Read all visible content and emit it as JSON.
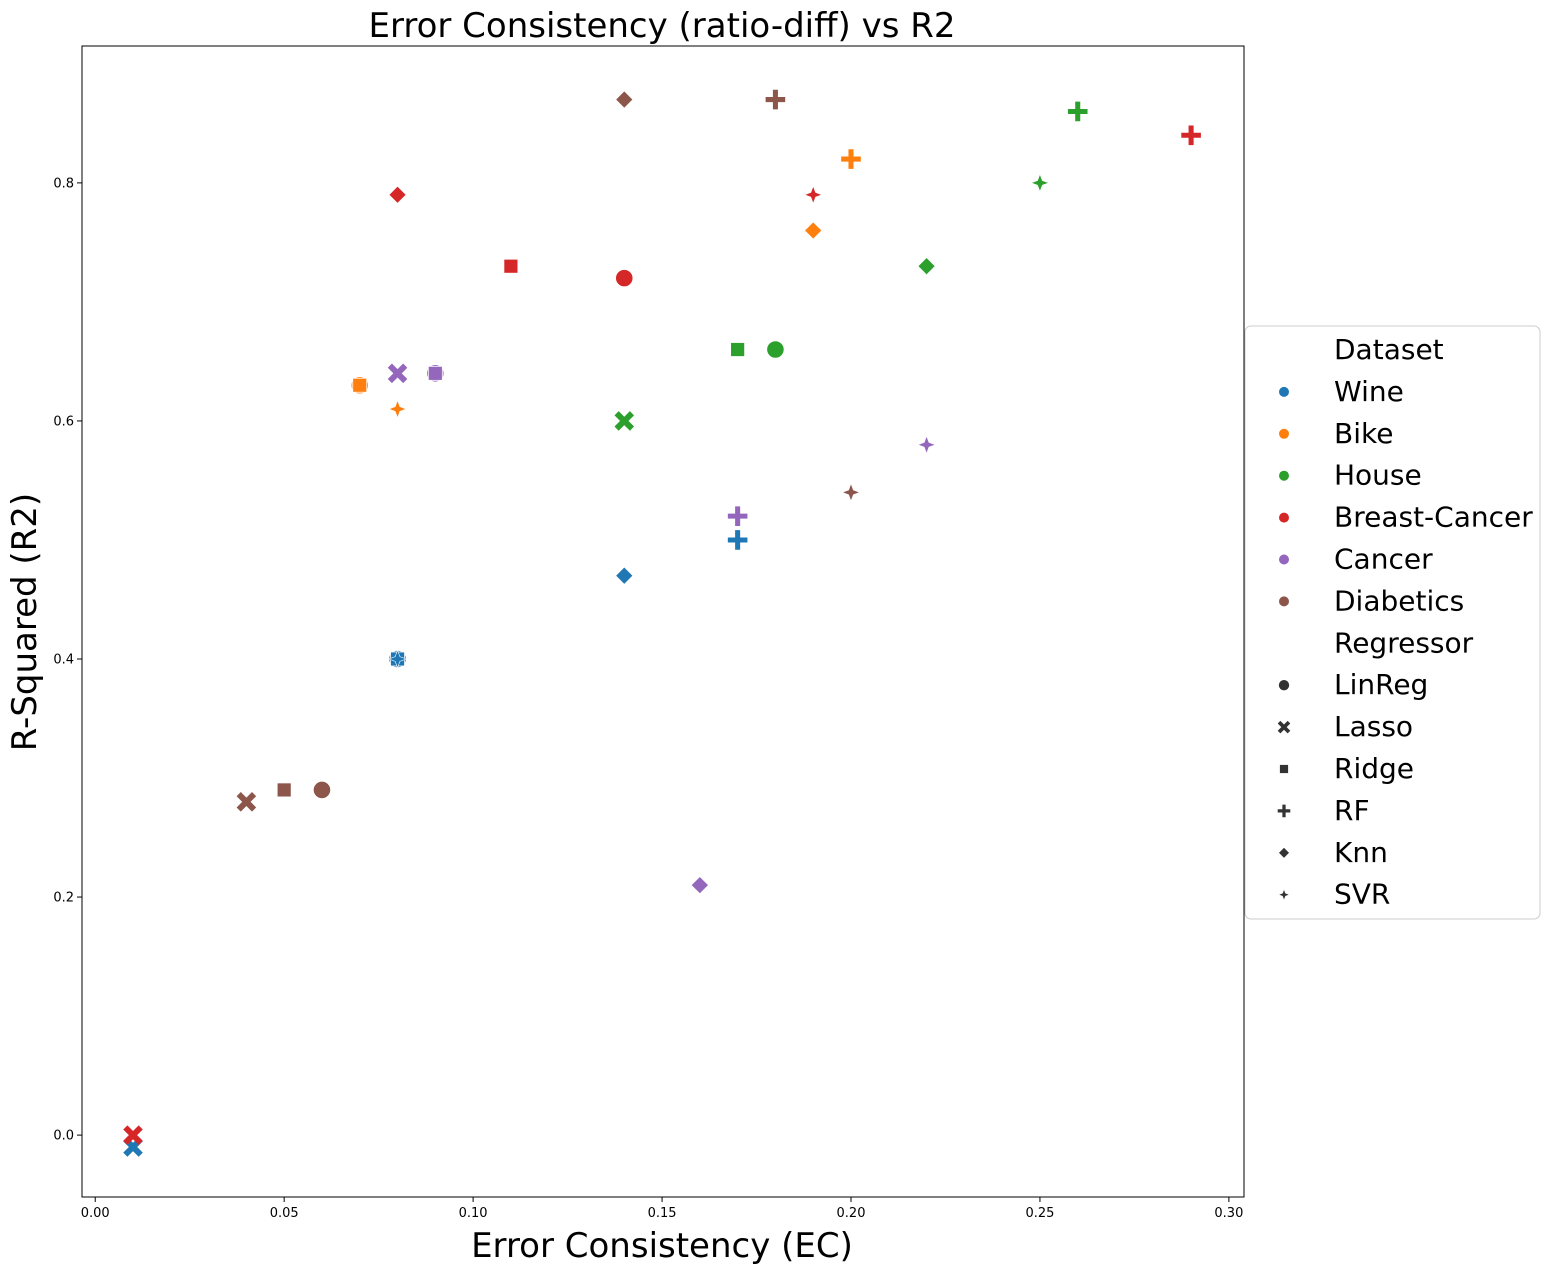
{
  "chart_data": {
    "type": "scatter",
    "title": "Error Consistency (ratio-diff) vs R2",
    "xlabel": "Error Consistency (EC)",
    "ylabel": "R-Squared (R2)",
    "xlim": [
      -0.0035,
      0.304
    ],
    "ylim": [
      -0.052,
      0.915
    ],
    "xticks": [
      0.0,
      0.05,
      0.1,
      0.15,
      0.2,
      0.25,
      0.3
    ],
    "xtick_labels": [
      "0.00",
      "0.05",
      "0.10",
      "0.15",
      "0.20",
      "0.25",
      "0.30"
    ],
    "yticks": [
      0.0,
      0.2,
      0.4,
      0.6,
      0.8
    ],
    "ytick_labels": [
      "0.0",
      "0.2",
      "0.4",
      "0.6",
      "0.8"
    ],
    "grid": false,
    "legend_position": "right",
    "hue": {
      "title": "Dataset",
      "entries": [
        {
          "name": "Wine",
          "color": "#1f77b4"
        },
        {
          "name": "Bike",
          "color": "#ff7f0e"
        },
        {
          "name": "House",
          "color": "#2ca02c"
        },
        {
          "name": "Breast-Cancer",
          "color": "#d62728"
        },
        {
          "name": "Cancer",
          "color": "#9467bd"
        },
        {
          "name": "Diabetics",
          "color": "#8c564b"
        }
      ]
    },
    "style": {
      "title": "Regressor",
      "entries": [
        {
          "name": "LinReg",
          "marker": "circle"
        },
        {
          "name": "Lasso",
          "marker": "x"
        },
        {
          "name": "Ridge",
          "marker": "square"
        },
        {
          "name": "RF",
          "marker": "plus"
        },
        {
          "name": "Knn",
          "marker": "diamond"
        },
        {
          "name": "SVR",
          "marker": "star4"
        }
      ]
    },
    "points": [
      {
        "dataset": "Wine",
        "regressor": "LinReg",
        "x": 0.08,
        "y": 0.4
      },
      {
        "dataset": "Wine",
        "regressor": "Lasso",
        "x": 0.01,
        "y": -0.01
      },
      {
        "dataset": "Wine",
        "regressor": "Ridge",
        "x": 0.08,
        "y": 0.4
      },
      {
        "dataset": "Wine",
        "regressor": "RF",
        "x": 0.17,
        "y": 0.5
      },
      {
        "dataset": "Wine",
        "regressor": "Knn",
        "x": 0.14,
        "y": 0.47
      },
      {
        "dataset": "Wine",
        "regressor": "SVR",
        "x": 0.08,
        "y": 0.4
      },
      {
        "dataset": "Bike",
        "regressor": "LinReg",
        "x": 0.07,
        "y": 0.63
      },
      {
        "dataset": "Bike",
        "regressor": "Ridge",
        "x": 0.07,
        "y": 0.63
      },
      {
        "dataset": "Bike",
        "regressor": "RF",
        "x": 0.2,
        "y": 0.82
      },
      {
        "dataset": "Bike",
        "regressor": "Knn",
        "x": 0.19,
        "y": 0.76
      },
      {
        "dataset": "Bike",
        "regressor": "SVR",
        "x": 0.08,
        "y": 0.61
      },
      {
        "dataset": "House",
        "regressor": "LinReg",
        "x": 0.18,
        "y": 0.66
      },
      {
        "dataset": "House",
        "regressor": "Lasso",
        "x": 0.14,
        "y": 0.6
      },
      {
        "dataset": "House",
        "regressor": "Ridge",
        "x": 0.17,
        "y": 0.66
      },
      {
        "dataset": "House",
        "regressor": "RF",
        "x": 0.26,
        "y": 0.86
      },
      {
        "dataset": "House",
        "regressor": "Knn",
        "x": 0.22,
        "y": 0.73
      },
      {
        "dataset": "House",
        "regressor": "SVR",
        "x": 0.25,
        "y": 0.8
      },
      {
        "dataset": "Breast-Cancer",
        "regressor": "LinReg",
        "x": 0.14,
        "y": 0.72
      },
      {
        "dataset": "Breast-Cancer",
        "regressor": "Lasso",
        "x": 0.01,
        "y": 0.0
      },
      {
        "dataset": "Breast-Cancer",
        "regressor": "Ridge",
        "x": 0.11,
        "y": 0.73
      },
      {
        "dataset": "Breast-Cancer",
        "regressor": "RF",
        "x": 0.29,
        "y": 0.84
      },
      {
        "dataset": "Breast-Cancer",
        "regressor": "Knn",
        "x": 0.08,
        "y": 0.79
      },
      {
        "dataset": "Breast-Cancer",
        "regressor": "SVR",
        "x": 0.19,
        "y": 0.79
      },
      {
        "dataset": "Cancer",
        "regressor": "LinReg",
        "x": 0.09,
        "y": 0.64
      },
      {
        "dataset": "Cancer",
        "regressor": "Lasso",
        "x": 0.08,
        "y": 0.64
      },
      {
        "dataset": "Cancer",
        "regressor": "Ridge",
        "x": 0.09,
        "y": 0.64
      },
      {
        "dataset": "Cancer",
        "regressor": "RF",
        "x": 0.17,
        "y": 0.52
      },
      {
        "dataset": "Cancer",
        "regressor": "Knn",
        "x": 0.16,
        "y": 0.21
      },
      {
        "dataset": "Cancer",
        "regressor": "SVR",
        "x": 0.22,
        "y": 0.58
      },
      {
        "dataset": "Diabetics",
        "regressor": "LinReg",
        "x": 0.06,
        "y": 0.29
      },
      {
        "dataset": "Diabetics",
        "regressor": "Lasso",
        "x": 0.04,
        "y": 0.28
      },
      {
        "dataset": "Diabetics",
        "regressor": "Ridge",
        "x": 0.05,
        "y": 0.29
      },
      {
        "dataset": "Diabetics",
        "regressor": "RF",
        "x": 0.18,
        "y": 0.87
      },
      {
        "dataset": "Diabetics",
        "regressor": "Knn",
        "x": 0.14,
        "y": 0.87
      },
      {
        "dataset": "Diabetics",
        "regressor": "SVR",
        "x": 0.2,
        "y": 0.54
      }
    ]
  }
}
